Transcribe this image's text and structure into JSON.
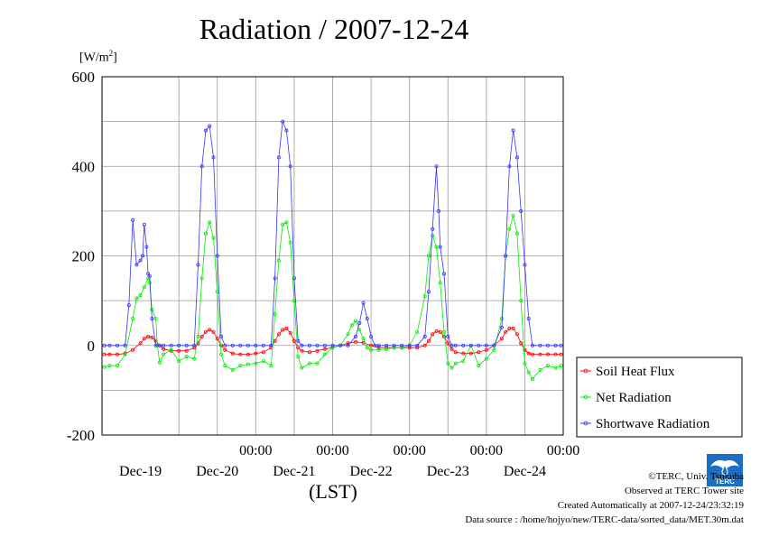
{
  "title": "Radiation / 2007-12-24",
  "unit_main": "[W/m",
  "unit_sup": "2",
  "unit_close": "]",
  "chart_data": {
    "type": "line",
    "ylim": [
      -200,
      600
    ],
    "yticks": [
      -200,
      0,
      200,
      400,
      600
    ],
    "xlim": [
      -1.0,
      5.0
    ],
    "tick_time_label": "00:00",
    "date_labels": [
      "Dec-19",
      "Dec-20",
      "Dec-21",
      "Dec-22",
      "Dec-23",
      "Dec-24"
    ],
    "xlabel": "(LST)",
    "grid": true,
    "legend_position": "lower-right outside",
    "series": [
      {
        "name": "Soil Heat Flux",
        "color": "#ff0000",
        "x": [
          -0.97,
          -0.9,
          -0.8,
          -0.7,
          -0.6,
          -0.5,
          -0.45,
          -0.4,
          -0.35,
          -0.3,
          -0.25,
          -0.2,
          -0.1,
          0.0,
          0.1,
          0.2,
          0.25,
          0.3,
          0.35,
          0.4,
          0.45,
          0.5,
          0.55,
          0.6,
          0.7,
          0.8,
          0.9,
          1.0,
          1.1,
          1.2,
          1.25,
          1.3,
          1.35,
          1.4,
          1.45,
          1.5,
          1.55,
          1.6,
          1.7,
          1.8,
          1.9,
          2.0,
          2.1,
          2.2,
          2.3,
          2.4,
          2.5,
          2.6,
          2.7,
          2.8,
          2.9,
          3.0,
          3.1,
          3.2,
          3.25,
          3.3,
          3.35,
          3.4,
          3.45,
          3.5,
          3.55,
          3.6,
          3.7,
          3.8,
          3.9,
          4.0,
          4.1,
          4.2,
          4.25,
          4.3,
          4.35,
          4.4,
          4.45,
          4.5,
          4.55,
          4.6,
          4.7,
          4.8,
          4.9,
          4.97
        ],
        "y": [
          -20,
          -20,
          -20,
          -18,
          -10,
          5,
          15,
          20,
          18,
          10,
          0,
          -8,
          -12,
          -12,
          -12,
          -5,
          5,
          20,
          30,
          35,
          30,
          15,
          0,
          -10,
          -18,
          -20,
          -20,
          -18,
          -15,
          -5,
          10,
          25,
          35,
          38,
          28,
          10,
          -5,
          -12,
          -15,
          -12,
          -8,
          -5,
          0,
          5,
          8,
          6,
          0,
          -5,
          -5,
          -5,
          -5,
          -5,
          -5,
          0,
          10,
          25,
          32,
          30,
          20,
          5,
          -8,
          -15,
          -18,
          -18,
          -15,
          -10,
          0,
          15,
          30,
          38,
          38,
          25,
          5,
          -10,
          -18,
          -20,
          -20,
          -20,
          -20,
          -20
        ]
      },
      {
        "name": "Net Radiation",
        "color": "#00ee00",
        "x": [
          -0.97,
          -0.9,
          -0.8,
          -0.7,
          -0.6,
          -0.55,
          -0.5,
          -0.45,
          -0.4,
          -0.38,
          -0.35,
          -0.3,
          -0.28,
          -0.25,
          -0.2,
          -0.1,
          0.0,
          0.1,
          0.2,
          0.25,
          0.3,
          0.35,
          0.4,
          0.45,
          0.5,
          0.55,
          0.6,
          0.7,
          0.8,
          0.9,
          1.0,
          1.1,
          1.2,
          1.25,
          1.3,
          1.35,
          1.4,
          1.45,
          1.5,
          1.55,
          1.6,
          1.7,
          1.8,
          1.9,
          2.0,
          2.1,
          2.2,
          2.25,
          2.3,
          2.35,
          2.4,
          2.45,
          2.5,
          2.6,
          2.7,
          2.8,
          2.9,
          3.0,
          3.1,
          3.2,
          3.25,
          3.3,
          3.35,
          3.4,
          3.45,
          3.5,
          3.55,
          3.6,
          3.7,
          3.8,
          3.9,
          4.0,
          4.1,
          4.2,
          4.25,
          4.3,
          4.35,
          4.4,
          4.45,
          4.5,
          4.55,
          4.6,
          4.7,
          4.8,
          4.9,
          4.97
        ],
        "y": [
          -48,
          -45,
          -45,
          -20,
          60,
          105,
          112,
          130,
          150,
          140,
          80,
          60,
          0,
          -38,
          -20,
          -10,
          -35,
          -25,
          -30,
          20,
          150,
          250,
          275,
          240,
          120,
          -20,
          -45,
          -55,
          -45,
          -42,
          -40,
          -35,
          -45,
          70,
          190,
          270,
          275,
          230,
          100,
          -25,
          -50,
          -40,
          -40,
          -20,
          -5,
          0,
          25,
          45,
          55,
          35,
          15,
          -5,
          -10,
          -10,
          -8,
          -5,
          -5,
          0,
          30,
          110,
          200,
          245,
          220,
          140,
          30,
          -40,
          -50,
          -40,
          -35,
          0,
          -45,
          -30,
          -10,
          60,
          200,
          260,
          290,
          250,
          100,
          -40,
          -60,
          -75,
          -55,
          -45,
          -50,
          -45
        ]
      },
      {
        "name": "Shortwave Radiation",
        "color": "#3333ff",
        "x": [
          -0.97,
          -0.9,
          -0.8,
          -0.7,
          -0.65,
          -0.6,
          -0.55,
          -0.5,
          -0.47,
          -0.45,
          -0.42,
          -0.4,
          -0.38,
          -0.35,
          -0.3,
          -0.25,
          -0.2,
          -0.1,
          0.0,
          0.1,
          0.2,
          0.25,
          0.3,
          0.35,
          0.4,
          0.45,
          0.5,
          0.55,
          0.6,
          0.7,
          0.8,
          0.9,
          1.0,
          1.1,
          1.2,
          1.25,
          1.3,
          1.35,
          1.4,
          1.45,
          1.5,
          1.55,
          1.6,
          1.7,
          1.8,
          1.9,
          2.0,
          2.1,
          2.2,
          2.3,
          2.35,
          2.4,
          2.45,
          2.5,
          2.55,
          2.6,
          2.7,
          2.8,
          2.9,
          3.0,
          3.1,
          3.2,
          3.25,
          3.3,
          3.35,
          3.38,
          3.4,
          3.45,
          3.5,
          3.55,
          3.6,
          3.7,
          3.8,
          3.9,
          4.0,
          4.1,
          4.2,
          4.25,
          4.3,
          4.35,
          4.4,
          4.45,
          4.5,
          4.55,
          4.6,
          4.7,
          4.8,
          4.9,
          4.97
        ],
        "y": [
          0,
          0,
          0,
          0,
          90,
          280,
          180,
          190,
          200,
          270,
          220,
          160,
          155,
          60,
          0,
          0,
          0,
          0,
          0,
          0,
          0,
          180,
          400,
          480,
          490,
          420,
          200,
          20,
          0,
          0,
          0,
          0,
          0,
          0,
          0,
          150,
          420,
          500,
          480,
          400,
          150,
          10,
          0,
          0,
          0,
          0,
          0,
          0,
          0,
          20,
          50,
          95,
          60,
          20,
          0,
          0,
          0,
          0,
          0,
          0,
          0,
          20,
          120,
          260,
          400,
          300,
          220,
          160,
          20,
          0,
          0,
          0,
          0,
          0,
          0,
          0,
          40,
          200,
          400,
          480,
          420,
          300,
          180,
          60,
          0,
          0,
          0,
          0,
          0
        ]
      }
    ]
  },
  "credits": {
    "copyright": "©TERC, Univ. Tsukuba",
    "observed": "Observed at TERC Tower site",
    "created": "Created Automatically at 2007-12-24/23:32:19",
    "source": "Data source : /home/hojyo/new/TERC-data/sorted_data/MET.30m.dat"
  },
  "logo_text": "TERC"
}
